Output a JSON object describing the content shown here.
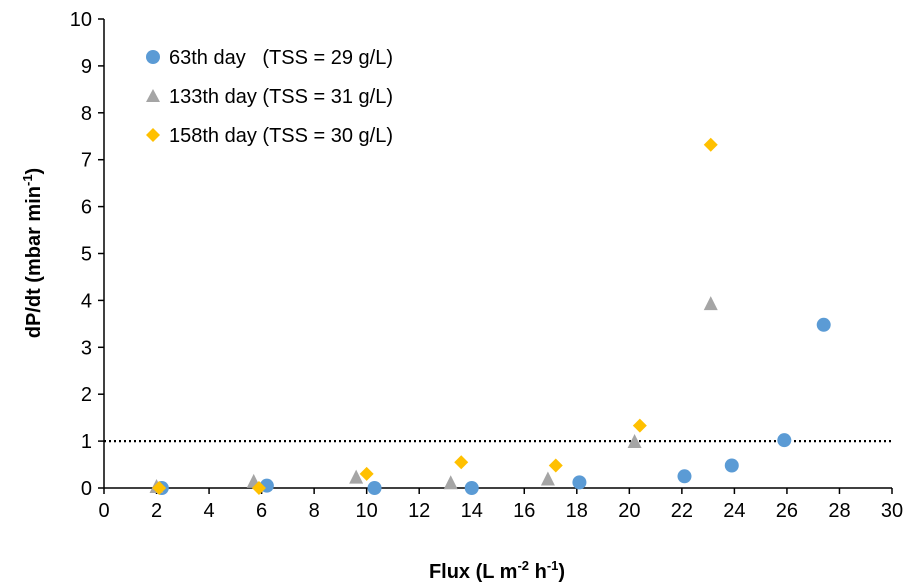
{
  "chart_data": {
    "type": "scatter",
    "xlabel": {
      "main": "Flux (L m",
      "sup1": "-2",
      "mid": " h",
      "sup2": "-1",
      "end": ")"
    },
    "ylabel": {
      "main": "dP/dt (mbar min",
      "sup": "-1",
      "end": ")"
    },
    "xlim": [
      0,
      30
    ],
    "ylim": [
      0,
      10
    ],
    "xticks": [
      0,
      2,
      4,
      6,
      8,
      10,
      12,
      14,
      16,
      18,
      20,
      22,
      24,
      26,
      28,
      30
    ],
    "yticks": [
      0,
      1,
      2,
      3,
      4,
      5,
      6,
      7,
      8,
      9,
      10
    ],
    "grid": false,
    "legend_position": "top-left",
    "reference_line": {
      "y": 1,
      "style": "dotted",
      "color": "#000000"
    },
    "series": [
      {
        "name": "63th day   (TSS = 29 g/L)",
        "marker": "circle",
        "color": "#5B9BD5",
        "points": [
          [
            2.2,
            0.0
          ],
          [
            6.2,
            0.05
          ],
          [
            10.3,
            0.0
          ],
          [
            14.0,
            0.0
          ],
          [
            18.1,
            0.12
          ],
          [
            22.1,
            0.25
          ],
          [
            23.9,
            0.48
          ],
          [
            25.9,
            1.02
          ],
          [
            27.4,
            3.48
          ]
        ]
      },
      {
        "name": "133th day (TSS = 31 g/L)",
        "marker": "triangle",
        "color": "#A5A5A5",
        "points": [
          [
            2.0,
            0.02
          ],
          [
            5.7,
            0.13
          ],
          [
            9.6,
            0.22
          ],
          [
            13.2,
            0.1
          ],
          [
            16.9,
            0.18
          ],
          [
            20.2,
            0.98
          ],
          [
            23.1,
            3.92
          ]
        ]
      },
      {
        "name": "158th day (TSS = 30 g/L)",
        "marker": "diamond",
        "color": "#FFC000",
        "points": [
          [
            2.1,
            0.0
          ],
          [
            5.9,
            0.0
          ],
          [
            10.0,
            0.3
          ],
          [
            13.6,
            0.55
          ],
          [
            17.2,
            0.48
          ],
          [
            20.4,
            1.33
          ],
          [
            23.1,
            7.32
          ]
        ]
      }
    ]
  }
}
